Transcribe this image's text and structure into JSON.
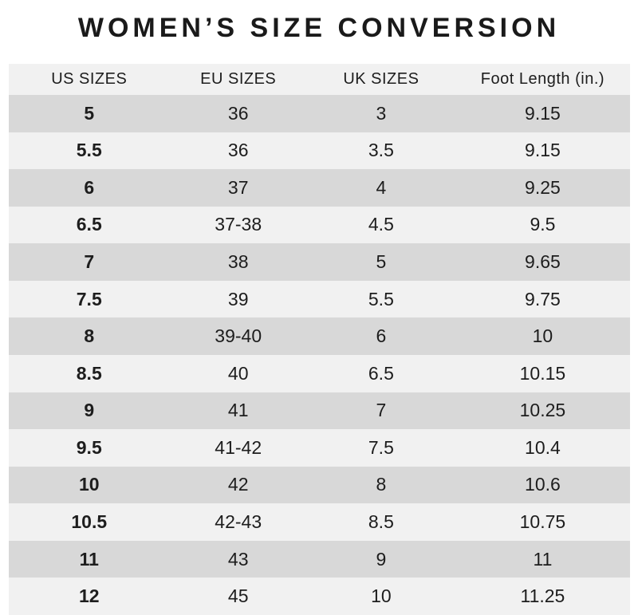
{
  "title": "WOMEN’S SIZE CONVERSION",
  "colors": {
    "page_background": "#ffffff",
    "header_row_background": "#f1f1f1",
    "row_dark_background": "#d8d8d8",
    "row_light_background": "#f1f1f1",
    "text": "#1d1d1d"
  },
  "chart_data": {
    "type": "table",
    "title": "WOMEN’S SIZE CONVERSION",
    "columns": [
      "US SIZES",
      "EU SIZES",
      "UK SIZES",
      "Foot Length (in.)"
    ],
    "rows": [
      [
        "5",
        "36",
        "3",
        "9.15"
      ],
      [
        "5.5",
        "36",
        "3.5",
        "9.15"
      ],
      [
        "6",
        "37",
        "4",
        "9.25"
      ],
      [
        "6.5",
        "37-38",
        "4.5",
        "9.5"
      ],
      [
        "7",
        "38",
        "5",
        "9.65"
      ],
      [
        "7.5",
        "39",
        "5.5",
        "9.75"
      ],
      [
        "8",
        "39-40",
        "6",
        "10"
      ],
      [
        "8.5",
        "40",
        "6.5",
        "10.15"
      ],
      [
        "9",
        "41",
        "7",
        "10.25"
      ],
      [
        "9.5",
        "41-42",
        "7.5",
        "10.4"
      ],
      [
        "10",
        "42",
        "8",
        "10.6"
      ],
      [
        "10.5",
        "42-43",
        "8.5",
        "10.75"
      ],
      [
        "11",
        "43",
        "9",
        "11"
      ],
      [
        "12",
        "45",
        "10",
        "11.25"
      ]
    ],
    "layout": {
      "row_striping": "alternating starting dark",
      "first_column_bold": true,
      "grid": false
    }
  }
}
